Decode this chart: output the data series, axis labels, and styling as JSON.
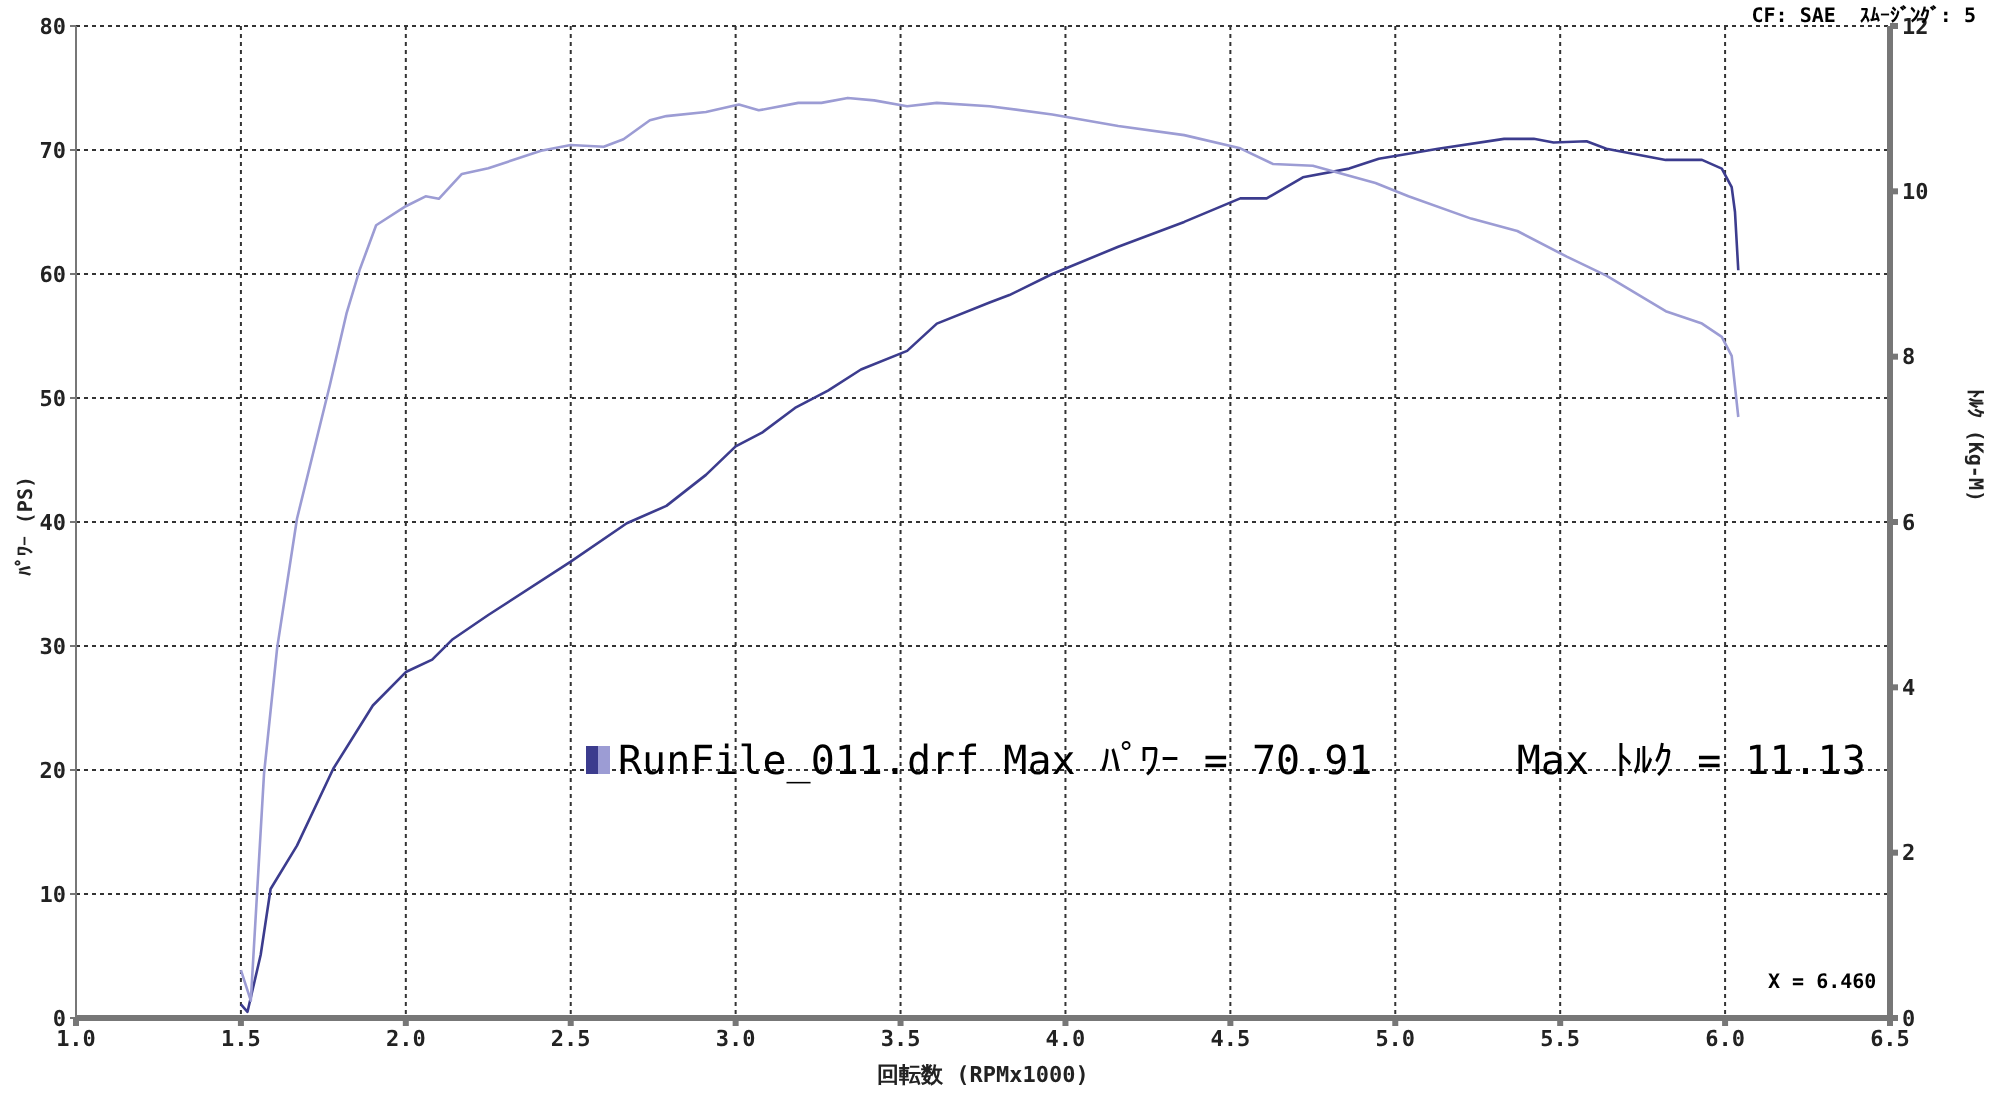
{
  "chart_data": {
    "type": "line",
    "xlabel": "回転数 (RPMx1000)",
    "ylabel": "ﾊﾟﾜｰ (PS)",
    "y2label": "ﾄﾙｸ (Kg-M)",
    "annotations": [
      "CF: SAE  ｽﾑｰｼﾞﾝｸﾞ: 5",
      "RunFile_011.drf Max ﾊﾟﾜｰ = 70.91      Max ﾄﾙｸ = 11.13",
      "X = 6.460"
    ],
    "series": [
      {
        "color": "#3c3c8e",
        "x": [
          1.5,
          1.52,
          1.56,
          1.59,
          1.67,
          1.78,
          1.9,
          2.0,
          2.08,
          2.14,
          2.25,
          2.5,
          2.67,
          2.79,
          2.91,
          3.0,
          3.08,
          3.18,
          3.28,
          3.38,
          3.52,
          3.61,
          3.77,
          3.83,
          3.96,
          4.16,
          4.36,
          4.53,
          4.61,
          4.72,
          4.86,
          4.95,
          5.13,
          5.33,
          5.42,
          5.48,
          5.58,
          5.64,
          5.82,
          5.93,
          5.99,
          6.02,
          6.03,
          6.04
        ],
        "values": [
          1.1,
          0.5,
          5.1,
          10.4,
          13.9,
          20.1,
          25.2,
          27.9,
          28.9,
          30.5,
          32.5,
          36.8,
          39.9,
          41.3,
          43.8,
          46.1,
          47.2,
          49.2,
          50.6,
          52.3,
          53.8,
          56.0,
          57.7,
          58.3,
          60.0,
          62.2,
          64.2,
          66.1,
          66.1,
          67.8,
          68.5,
          69.3,
          70.1,
          70.9,
          70.9,
          70.6,
          70.7,
          70.1,
          69.2,
          69.2,
          68.5,
          67.0,
          65.0,
          60.3
        ]
      },
      {
        "color": "#9c9cd4",
        "axis": "y2",
        "x": [
          1.5,
          1.53,
          1.57,
          1.61,
          1.67,
          1.77,
          1.82,
          1.86,
          1.91,
          2.0,
          2.06,
          2.1,
          2.17,
          2.25,
          2.41,
          2.5,
          2.6,
          2.66,
          2.74,
          2.79,
          2.91,
          3.01,
          3.07,
          3.19,
          3.26,
          3.34,
          3.42,
          3.52,
          3.61,
          3.77,
          3.96,
          4.16,
          4.36,
          4.53,
          4.63,
          4.75,
          4.94,
          5.04,
          5.23,
          5.37,
          5.52,
          5.64,
          5.82,
          5.93,
          5.99,
          6.02,
          6.04
        ],
        "values": [
          0.58,
          0.21,
          2.95,
          4.48,
          6.04,
          7.66,
          8.52,
          9.05,
          9.59,
          9.82,
          9.94,
          9.91,
          10.21,
          10.28,
          10.49,
          10.56,
          10.54,
          10.63,
          10.86,
          10.91,
          10.96,
          11.05,
          10.98,
          11.07,
          11.07,
          11.13,
          11.1,
          11.03,
          11.07,
          11.03,
          10.93,
          10.79,
          10.68,
          10.52,
          10.33,
          10.31,
          10.1,
          9.94,
          9.67,
          9.52,
          9.21,
          8.98,
          8.55,
          8.4,
          8.24,
          8.01,
          7.27
        ]
      }
    ],
    "xlim": [
      1.0,
      6.5
    ],
    "xticks": [
      {
        "value": 1.0,
        "label": "1.0"
      },
      {
        "value": 1.5,
        "label": "1.5"
      },
      {
        "value": 2.0,
        "label": "2.0"
      },
      {
        "value": 2.5,
        "label": "2.5"
      },
      {
        "value": 3.0,
        "label": "3.0"
      },
      {
        "value": 3.5,
        "label": "3.5"
      },
      {
        "value": 4.0,
        "label": "4.0"
      },
      {
        "value": 4.5,
        "label": "4.5"
      },
      {
        "value": 5.0,
        "label": "5.0"
      },
      {
        "value": 5.5,
        "label": "5.5"
      },
      {
        "value": 6.0,
        "label": "6.0"
      },
      {
        "value": 6.5,
        "label": "6.5"
      }
    ],
    "ylim": [
      0,
      80
    ],
    "yticks": [
      0,
      10,
      20,
      30,
      40,
      50,
      60,
      70,
      80
    ],
    "y2lim": [
      0,
      12
    ],
    "y2ticks": [
      0,
      2,
      4,
      6,
      8,
      10,
      12
    ],
    "grid": true,
    "legend": false,
    "marker": "none",
    "line_style": "solid"
  }
}
